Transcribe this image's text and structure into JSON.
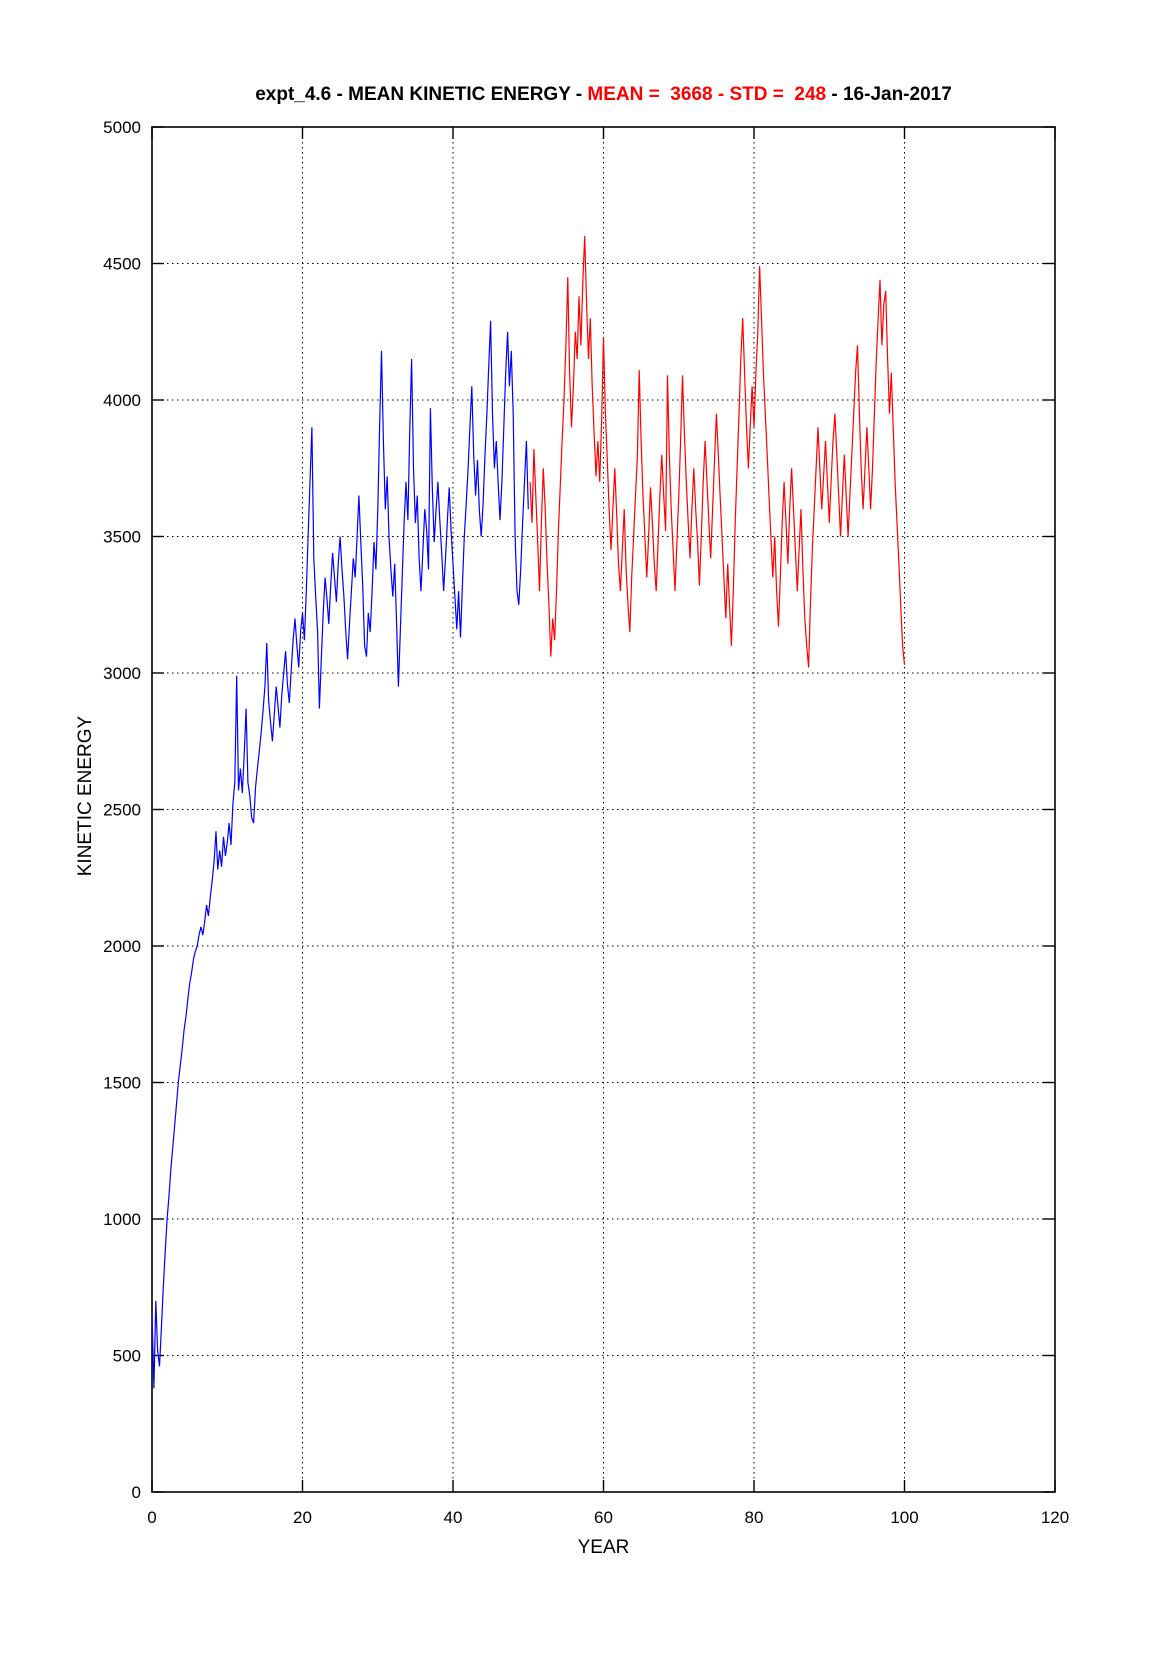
{
  "title": {
    "part1": "expt_4.6 - MEAN KINETIC ENERGY - ",
    "part2": "MEAN =  3668 - STD =  248",
    "part3": " - 16-Jan-2017"
  },
  "colors": {
    "spinup_line": "#0000ff",
    "extension_line": "#ff0000",
    "axis": "#000000",
    "grid": "#000000",
    "title_highlight": "#ff0000"
  },
  "chart_data": {
    "type": "line",
    "title": "expt_4.6 - MEAN KINETIC ENERGY - MEAN =  3668 - STD =  248 - 16-Jan-2017",
    "xlabel": "YEAR",
    "ylabel": "KINETIC ENERGY",
    "xlim": [
      0,
      120
    ],
    "ylim": [
      0,
      5000
    ],
    "xticks": [
      0,
      20,
      40,
      60,
      80,
      100,
      120
    ],
    "yticks": [
      0,
      500,
      1000,
      1500,
      2000,
      2500,
      3000,
      3500,
      4000,
      4500,
      5000
    ],
    "grid": true,
    "legend": "none",
    "stats": {
      "mean": 3668,
      "std": 248,
      "date": "16-Jan-2017"
    },
    "series": [
      {
        "name": "spinup",
        "color": "#0000ff",
        "x0": 0,
        "dx": 0.25,
        "values": [
          650,
          380,
          700,
          520,
          460,
          600,
          750,
          880,
          1000,
          1080,
          1180,
          1260,
          1340,
          1420,
          1500,
          1560,
          1620,
          1690,
          1740,
          1800,
          1860,
          1900,
          1950,
          1980,
          2000,
          2040,
          2070,
          2040,
          2090,
          2150,
          2110,
          2180,
          2240,
          2310,
          2420,
          2280,
          2350,
          2290,
          2400,
          2330,
          2380,
          2450,
          2370,
          2520,
          2600,
          2990,
          2570,
          2650,
          2560,
          2700,
          2870,
          2600,
          2550,
          2470,
          2450,
          2580,
          2650,
          2710,
          2780,
          2860,
          2950,
          3110,
          2900,
          2820,
          2750,
          2850,
          2950,
          2880,
          2800,
          2920,
          3000,
          3080,
          2960,
          2890,
          3010,
          3120,
          3200,
          3100,
          3020,
          3150,
          3220,
          3120,
          3300,
          3500,
          3700,
          3900,
          3420,
          3280,
          3150,
          2870,
          3050,
          3220,
          3350,
          3270,
          3180,
          3320,
          3440,
          3350,
          3260,
          3400,
          3500,
          3380,
          3280,
          3150,
          3050,
          3180,
          3300,
          3420,
          3350,
          3500,
          3650,
          3480,
          3320,
          3100,
          3060,
          3220,
          3150,
          3300,
          3480,
          3380,
          3600,
          3900,
          4180,
          3850,
          3600,
          3720,
          3500,
          3380,
          3280,
          3400,
          3180,
          2950,
          3150,
          3350,
          3550,
          3700,
          3560,
          3880,
          4150,
          3750,
          3550,
          3650,
          3420,
          3300,
          3450,
          3600,
          3520,
          3380,
          3970,
          3680,
          3480,
          3600,
          3700,
          3560,
          3440,
          3300,
          3420,
          3560,
          3680,
          3520,
          3400,
          3280,
          3160,
          3300,
          3130,
          3320,
          3500,
          3620,
          3750,
          3900,
          4050,
          3800,
          3650,
          3780,
          3600,
          3500,
          3620,
          3800,
          3950,
          4120,
          4290,
          3950,
          3750,
          3850,
          3700,
          3560,
          3700,
          3900,
          4100,
          4250,
          4050,
          4180,
          3950,
          3500,
          3300,
          3250,
          3380,
          3550,
          3700,
          3850,
          3600
        ]
      },
      {
        "name": "extension",
        "color": "#ff0000",
        "x0": 50.25,
        "dx": 0.25,
        "values": [
          3700,
          3550,
          3820,
          3650,
          3480,
          3300,
          3550,
          3750,
          3600,
          3400,
          3250,
          3060,
          3200,
          3120,
          3300,
          3520,
          3680,
          3850,
          4000,
          4200,
          4450,
          4100,
          3900,
          4050,
          4250,
          4150,
          4380,
          4200,
          4430,
          4600,
          4350,
          4150,
          4300,
          4050,
          3880,
          3720,
          3850,
          3700,
          3920,
          4230,
          3950,
          3780,
          3600,
          3450,
          3600,
          3750,
          3580,
          3400,
          3300,
          3450,
          3600,
          3380,
          3250,
          3150,
          3350,
          3500,
          3650,
          3800,
          4110,
          3850,
          3650,
          3500,
          3350,
          3500,
          3680,
          3550,
          3400,
          3300,
          3480,
          3650,
          3800,
          3650,
          3520,
          4090,
          3800,
          3600,
          3450,
          3300,
          3480,
          3650,
          3850,
          4090,
          3880,
          3700,
          3550,
          3420,
          3600,
          3750,
          3600,
          3480,
          3320,
          3500,
          3700,
          3850,
          3700,
          3550,
          3420,
          3600,
          3780,
          3950,
          3800,
          3650,
          3500,
          3350,
          3200,
          3400,
          3250,
          3100,
          3300,
          3550,
          3750,
          3950,
          4150,
          4300,
          4100,
          3900,
          3750,
          3900,
          4050,
          3900,
          4100,
          4250,
          4490,
          4300,
          4100,
          3950,
          3800,
          3650,
          3500,
          3350,
          3500,
          3300,
          3170,
          3350,
          3550,
          3700,
          3550,
          3400,
          3600,
          3750,
          3600,
          3450,
          3300,
          3450,
          3600,
          3380,
          3200,
          3100,
          3020,
          3250,
          3450,
          3600,
          3750,
          3900,
          3750,
          3600,
          3720,
          3850,
          3700,
          3550,
          3700,
          3850,
          3950,
          3800,
          3650,
          3500,
          3650,
          3800,
          3650,
          3500,
          3650,
          3800,
          3950,
          4100,
          4200,
          3950,
          3750,
          3600,
          3750,
          3900,
          3750,
          3600,
          3750,
          3950,
          4150,
          4300,
          4440,
          4200,
          4350,
          4400,
          4150,
          3950,
          4100,
          3900,
          3700,
          3550,
          3400,
          3250,
          3100,
          3030
        ]
      }
    ]
  }
}
